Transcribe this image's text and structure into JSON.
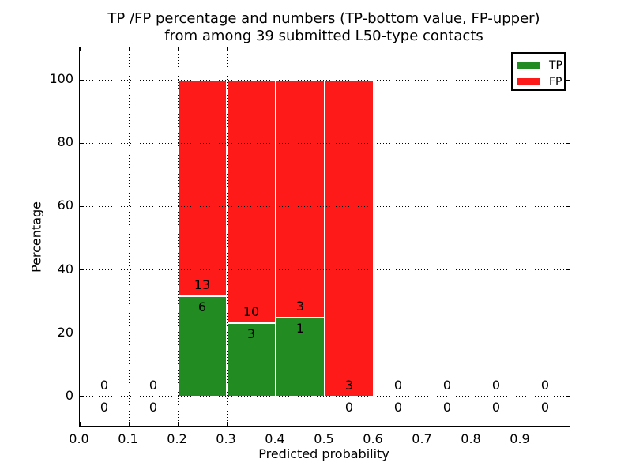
{
  "chart_data": {
    "type": "bar",
    "stacked": true,
    "normalized_to_percent": true,
    "title_line1": "TP /FP percentage and numbers (TP-bottom value, FP-upper)",
    "title_line2": "from among 39 submitted L50-type contacts",
    "xlabel": "Predicted probability",
    "ylabel": "Percentage",
    "xlim": [
      0.0,
      1.0
    ],
    "ylim": [
      -9.3,
      110.3
    ],
    "grid": true,
    "grid_style": "dotted",
    "legend_position": "upper right",
    "bin_width": 0.1,
    "annotation_offset_pct": 3.5,
    "series": [
      {
        "name": "TP",
        "color": "#228b22",
        "values": [
          0,
          0,
          6,
          3,
          1,
          0,
          0,
          0,
          0,
          0
        ]
      },
      {
        "name": "FP",
        "color": "#ff1a1a",
        "values": [
          0,
          0,
          13,
          10,
          3,
          3,
          0,
          0,
          0,
          0
        ]
      }
    ],
    "bins": [
      {
        "x0": 0.0,
        "x1": 0.1,
        "tp": 0,
        "fp": 0
      },
      {
        "x0": 0.1,
        "x1": 0.2,
        "tp": 0,
        "fp": 0
      },
      {
        "x0": 0.2,
        "x1": 0.3,
        "tp": 6,
        "fp": 13
      },
      {
        "x0": 0.3,
        "x1": 0.4,
        "tp": 3,
        "fp": 10
      },
      {
        "x0": 0.4,
        "x1": 0.5,
        "tp": 1,
        "fp": 3
      },
      {
        "x0": 0.5,
        "x1": 0.6,
        "tp": 0,
        "fp": 3
      },
      {
        "x0": 0.6,
        "x1": 0.7,
        "tp": 0,
        "fp": 0
      },
      {
        "x0": 0.7,
        "x1": 0.8,
        "tp": 0,
        "fp": 0
      },
      {
        "x0": 0.8,
        "x1": 0.9,
        "tp": 0,
        "fp": 0
      },
      {
        "x0": 0.9,
        "x1": 1.0,
        "tp": 0,
        "fp": 0
      }
    ],
    "x_ticks": [
      {
        "value": 0.0,
        "label": "0.0"
      },
      {
        "value": 0.1,
        "label": "0.1"
      },
      {
        "value": 0.2,
        "label": "0.2"
      },
      {
        "value": 0.3,
        "label": "0.3"
      },
      {
        "value": 0.4,
        "label": "0.4"
      },
      {
        "value": 0.5,
        "label": "0.5"
      },
      {
        "value": 0.6,
        "label": "0.6"
      },
      {
        "value": 0.7,
        "label": "0.7"
      },
      {
        "value": 0.8,
        "label": "0.8"
      },
      {
        "value": 0.9,
        "label": "0.9"
      },
      {
        "value": 1.0,
        "label": ""
      }
    ],
    "y_ticks": [
      {
        "value": 0,
        "label": "0"
      },
      {
        "value": 20,
        "label": "20"
      },
      {
        "value": 40,
        "label": "40"
      },
      {
        "value": 60,
        "label": "60"
      },
      {
        "value": 80,
        "label": "80"
      },
      {
        "value": 100,
        "label": "100"
      }
    ]
  }
}
